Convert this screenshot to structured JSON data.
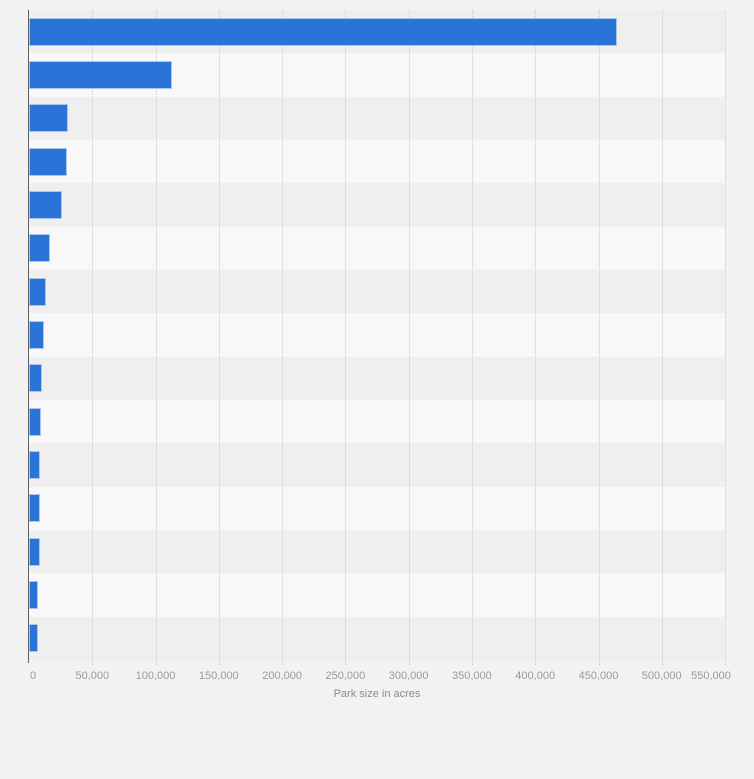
{
  "chart_data": {
    "type": "bar",
    "orientation": "horizontal",
    "title": "",
    "xlabel": "Park size in acres",
    "ylabel": "",
    "categories": [
      "",
      "",
      "",
      "",
      "",
      "",
      "",
      "",
      "",
      "",
      "",
      "",
      "",
      "",
      ""
    ],
    "values": [
      464300,
      112700,
      30700,
      30300,
      26000,
      16400,
      13200,
      12100,
      10100,
      9400,
      9000,
      8800,
      8600,
      7400,
      6900
    ],
    "xlim": [
      0,
      550000
    ],
    "x_ticks": [
      0,
      50000,
      100000,
      150000,
      200000,
      250000,
      300000,
      350000,
      400000,
      450000,
      500000,
      550000
    ],
    "x_tick_labels": [
      "0",
      "50,000",
      "100,000",
      "150,000",
      "200,000",
      "250,000",
      "300,000",
      "350,000",
      "400,000",
      "450,000",
      "500,000",
      "550,000"
    ],
    "grid": "vertical-dotted",
    "legend": "none",
    "row_stripes": "alternating"
  },
  "colors": {
    "page_bg": "#f2f2f2",
    "stripe_odd": "#efefef",
    "stripe_even": "#f8f8f8",
    "bar": "#2a73d7",
    "bar_border": "#a9c6ee",
    "grid": "#c9c9c9",
    "axis_line": "#616161",
    "tick_label": "#9a9a9a",
    "axis_title": "#8b8b8b"
  }
}
